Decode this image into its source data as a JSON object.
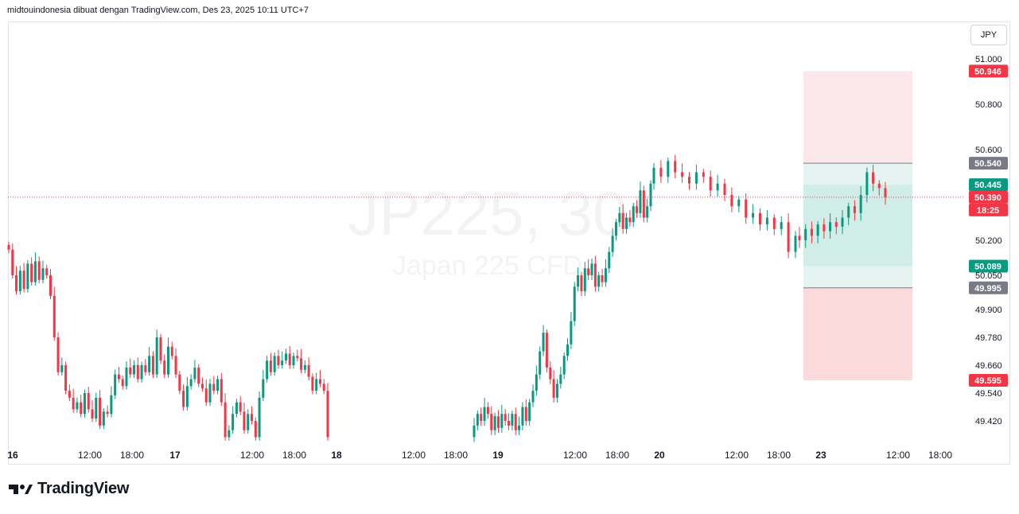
{
  "header": {
    "attribution": "midtouindonesia dibuat dengan TradingView.com, Des 23, 2025 10:11 UTC+7"
  },
  "watermark": {
    "symbol": "JP225, 30",
    "description": "Japan 225 CFD"
  },
  "currency_button": "JPY",
  "brand": {
    "name": "TradingView"
  },
  "colors": {
    "up": "#089981",
    "down": "#f23645",
    "target_zone": "#d1ede7",
    "stop_zone": "#fbdadc",
    "grey_tag": "#787b86",
    "current_line": "#f23645"
  },
  "chart_data": {
    "type": "candlestick",
    "title": "",
    "xlabel": "",
    "ylabel": "",
    "price_axis": {
      "ticks": [
        "51.000",
        "50.800",
        "50.600",
        "50.200",
        "50.050",
        "49.900",
        "49.780",
        "49.660",
        "49.540",
        "49.420"
      ],
      "ylim": [
        49.3,
        51.1
      ]
    },
    "time_axis": {
      "labels": [
        {
          "text": "16",
          "day": true
        },
        {
          "text": "12:00"
        },
        {
          "text": "18:00"
        },
        {
          "text": "17",
          "day": true
        },
        {
          "text": "12:00"
        },
        {
          "text": "18:00"
        },
        {
          "text": "18",
          "day": true
        },
        {
          "text": "12:00"
        },
        {
          "text": "18:00"
        },
        {
          "text": "19",
          "day": true
        },
        {
          "text": "12:00"
        },
        {
          "text": "18:00"
        },
        {
          "text": "20",
          "day": true
        },
        {
          "text": "12:00"
        },
        {
          "text": "18:00"
        },
        {
          "text": "23",
          "day": true
        },
        {
          "text": "12:00"
        },
        {
          "text": "18:00"
        }
      ]
    },
    "price_tags": {
      "stop_upper": "50.946",
      "entry_upper": "50.540",
      "last_high": "50.445",
      "current_price": "50.390",
      "countdown": "18:25",
      "target": "50.089",
      "entry_lower": "49.995",
      "stop_lower": "49.595"
    },
    "position_tool": {
      "top": 50.946,
      "entry_upper": 50.54,
      "target": 50.089,
      "entry_lower": 49.995,
      "bottom": 49.595
    },
    "current_price": 50.39,
    "segments": [
      {
        "name": "Dec 16-17",
        "closes": [
          50.16,
          50.05,
          49.98,
          50.07,
          49.99,
          50.1,
          50.02,
          50.11,
          50.03,
          50.08,
          50.05,
          49.96,
          49.78,
          49.63,
          49.66,
          49.55,
          49.52,
          49.47,
          49.5,
          49.45,
          49.54,
          49.47,
          49.43,
          49.52,
          49.4,
          49.46,
          49.45,
          49.53,
          49.62,
          49.6,
          49.57,
          49.65,
          49.62,
          49.66,
          49.6,
          49.66,
          49.63,
          49.7,
          49.62,
          49.78,
          49.68,
          49.62,
          49.74,
          49.7,
          49.62,
          49.55,
          49.48,
          49.57,
          49.6,
          49.65,
          49.58,
          49.56,
          49.5,
          49.58,
          49.55,
          49.6,
          49.5,
          49.35,
          49.38,
          49.45,
          49.5,
          49.46,
          49.38,
          49.45,
          49.42,
          49.35,
          49.52,
          49.6,
          49.68,
          49.63,
          49.7,
          49.66,
          49.68,
          49.71,
          49.66,
          49.7,
          49.69,
          49.64,
          49.66,
          49.61,
          49.55,
          49.6,
          49.58,
          49.55,
          49.35
        ]
      },
      {
        "name": "Dec 19",
        "closes": [
          49.4,
          49.45,
          49.42,
          49.48,
          49.45,
          49.38,
          49.44,
          49.39,
          49.45,
          49.42,
          49.4,
          49.45,
          49.38,
          49.4,
          49.48,
          49.42,
          49.5,
          49.55,
          49.62,
          49.72,
          49.8,
          49.65,
          49.6,
          49.52,
          49.58,
          49.62,
          49.7,
          49.75,
          49.85,
          50.0,
          50.05,
          49.98,
          50.08,
          50.05,
          50.1,
          50.0,
          50.05,
          50.02,
          50.08,
          50.15,
          50.22,
          50.28,
          50.32,
          50.25,
          50.3,
          50.28,
          50.35,
          50.32,
          50.42,
          50.3,
          50.35,
          50.45
        ]
      },
      {
        "name": "Dec 20",
        "closes": [
          50.52,
          50.48,
          50.55,
          50.5,
          50.48,
          50.45,
          50.5,
          50.48,
          50.42,
          50.45,
          50.4,
          50.35,
          50.38,
          50.3,
          50.32,
          50.27,
          50.3,
          50.25,
          50.28,
          50.15,
          50.22
        ]
      },
      {
        "name": "Dec 23",
        "closes": [
          50.2,
          50.25,
          50.22,
          50.27,
          50.24,
          50.28,
          50.26,
          50.3,
          50.35,
          50.32,
          50.4,
          50.5,
          50.45,
          50.43,
          50.39
        ]
      }
    ]
  }
}
